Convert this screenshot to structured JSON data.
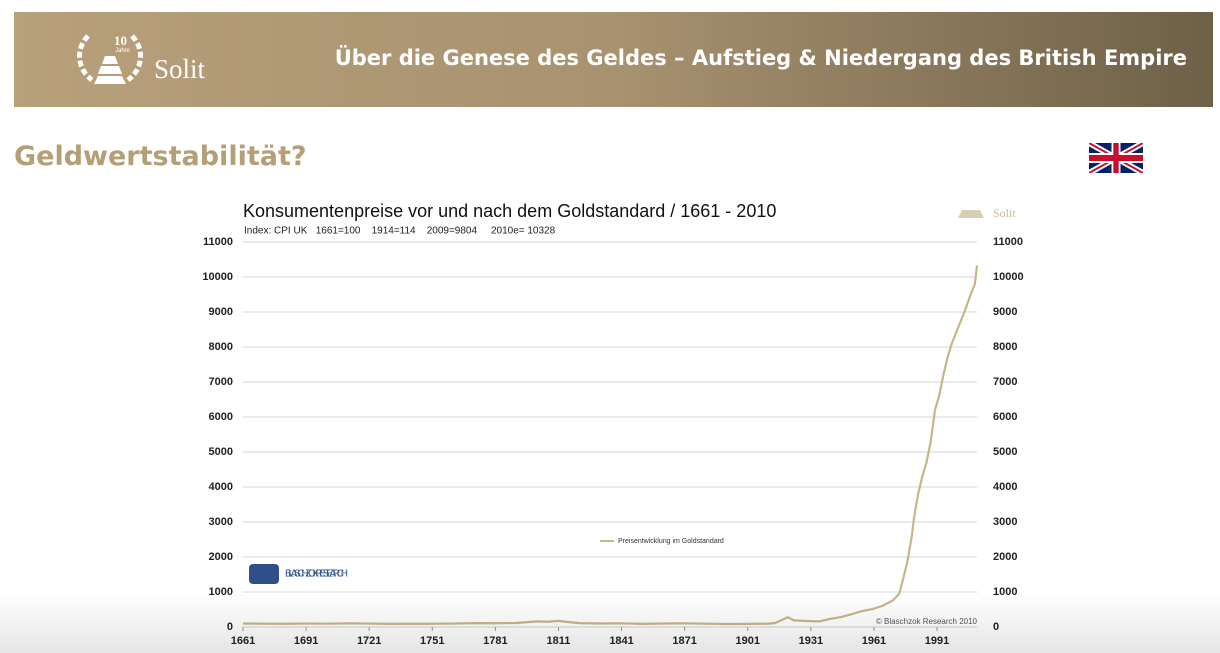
{
  "header": {
    "title": "Über die Genese des Geldes – Aufstieg & Niedergang des British Empire",
    "logo_number": "10",
    "logo_sub": "Jahre",
    "brand": "Solit"
  },
  "heading": "Geldwertstabilität?",
  "chart_data": {
    "type": "line",
    "title": "Konsumentenpreise vor und nach dem Goldstandard / 1661 - 2010",
    "subtitle": "Index: CPI UK   1661=100    1914=114    2009=9804     2010e= 10328",
    "watermark": "Solit",
    "source_logo": "BLASCHZOK RESEARCH",
    "copyright": "© Blaschzok Research 2010",
    "x": [
      1661,
      1671,
      1681,
      1691,
      1701,
      1711,
      1721,
      1731,
      1741,
      1751,
      1761,
      1771,
      1781,
      1791,
      1801,
      1806,
      1811,
      1816,
      1821,
      1831,
      1841,
      1851,
      1861,
      1871,
      1881,
      1891,
      1901,
      1911,
      1914,
      1918,
      1920,
      1923,
      1930,
      1935,
      1940,
      1945,
      1950,
      1955,
      1960,
      1965,
      1970,
      1973,
      1975,
      1977,
      1979,
      1980,
      1982,
      1984,
      1986,
      1988,
      1990,
      1992,
      1994,
      1996,
      1998,
      2000,
      2002,
      2004,
      2007,
      2009,
      2010
    ],
    "series": [
      {
        "name": "Preisentwicklung im Goldstandard",
        "color": "#c7b58b",
        "values": [
          100,
          95,
          92,
          98,
          95,
          105,
          98,
          90,
          92,
          93,
          98,
          110,
          108,
          115,
          160,
          150,
          175,
          140,
          110,
          100,
          105,
          90,
          100,
          105,
          95,
          85,
          90,
          95,
          114,
          220,
          280,
          190,
          170,
          160,
          230,
          280,
          360,
          450,
          510,
          600,
          760,
          950,
          1400,
          1900,
          2600,
          3100,
          3800,
          4300,
          4700,
          5300,
          6200,
          6600,
          7200,
          7700,
          8100,
          8400,
          8700,
          9000,
          9500,
          9804,
          10328
        ]
      }
    ],
    "xlim": [
      1661,
      2010
    ],
    "xticks": [
      1661,
      1691,
      1721,
      1751,
      1781,
      1811,
      1841,
      1871,
      1901,
      1931,
      1961,
      1991
    ],
    "ylim": [
      0,
      11000
    ],
    "yticks": [
      0,
      1000,
      2000,
      3000,
      4000,
      5000,
      6000,
      7000,
      8000,
      9000,
      10000,
      11000
    ],
    "grid": true,
    "legend": "center"
  }
}
